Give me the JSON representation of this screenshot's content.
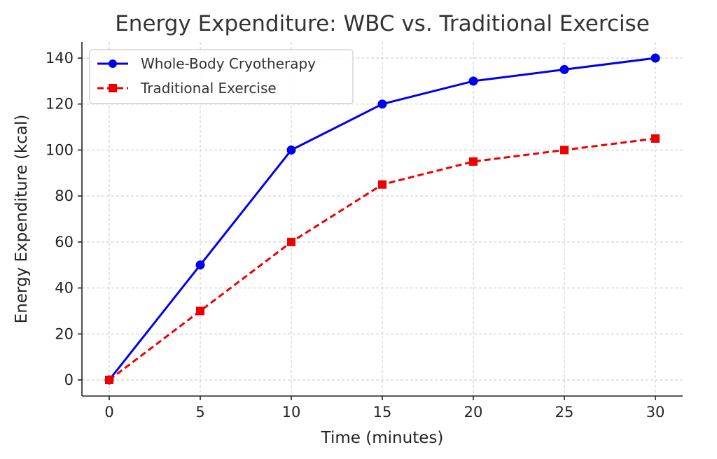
{
  "chart_data": {
    "type": "line",
    "title": "Energy Expenditure: WBC vs. Traditional Exercise",
    "xlabel": "Time (minutes)",
    "ylabel": "Energy Expenditure (kcal)",
    "x": [
      0,
      5,
      10,
      15,
      20,
      25,
      30
    ],
    "xticks": [
      0,
      5,
      10,
      15,
      20,
      25,
      30
    ],
    "yticks": [
      0,
      20,
      40,
      60,
      80,
      100,
      120,
      140
    ],
    "xlim": [
      -1.5,
      31.5
    ],
    "ylim": [
      -7,
      147
    ],
    "grid": true,
    "legend_position": "top-left",
    "series": [
      {
        "name": "Whole-Body Cryotherapy",
        "values": [
          0,
          50,
          100,
          120,
          130,
          135,
          140
        ],
        "color": "#0000ee",
        "marker": "circle",
        "line_style": "solid"
      },
      {
        "name": "Traditional Exercise",
        "values": [
          0,
          30,
          60,
          85,
          95,
          100,
          105
        ],
        "color": "#ee0000",
        "marker": "square",
        "line_style": "dashed"
      }
    ]
  }
}
